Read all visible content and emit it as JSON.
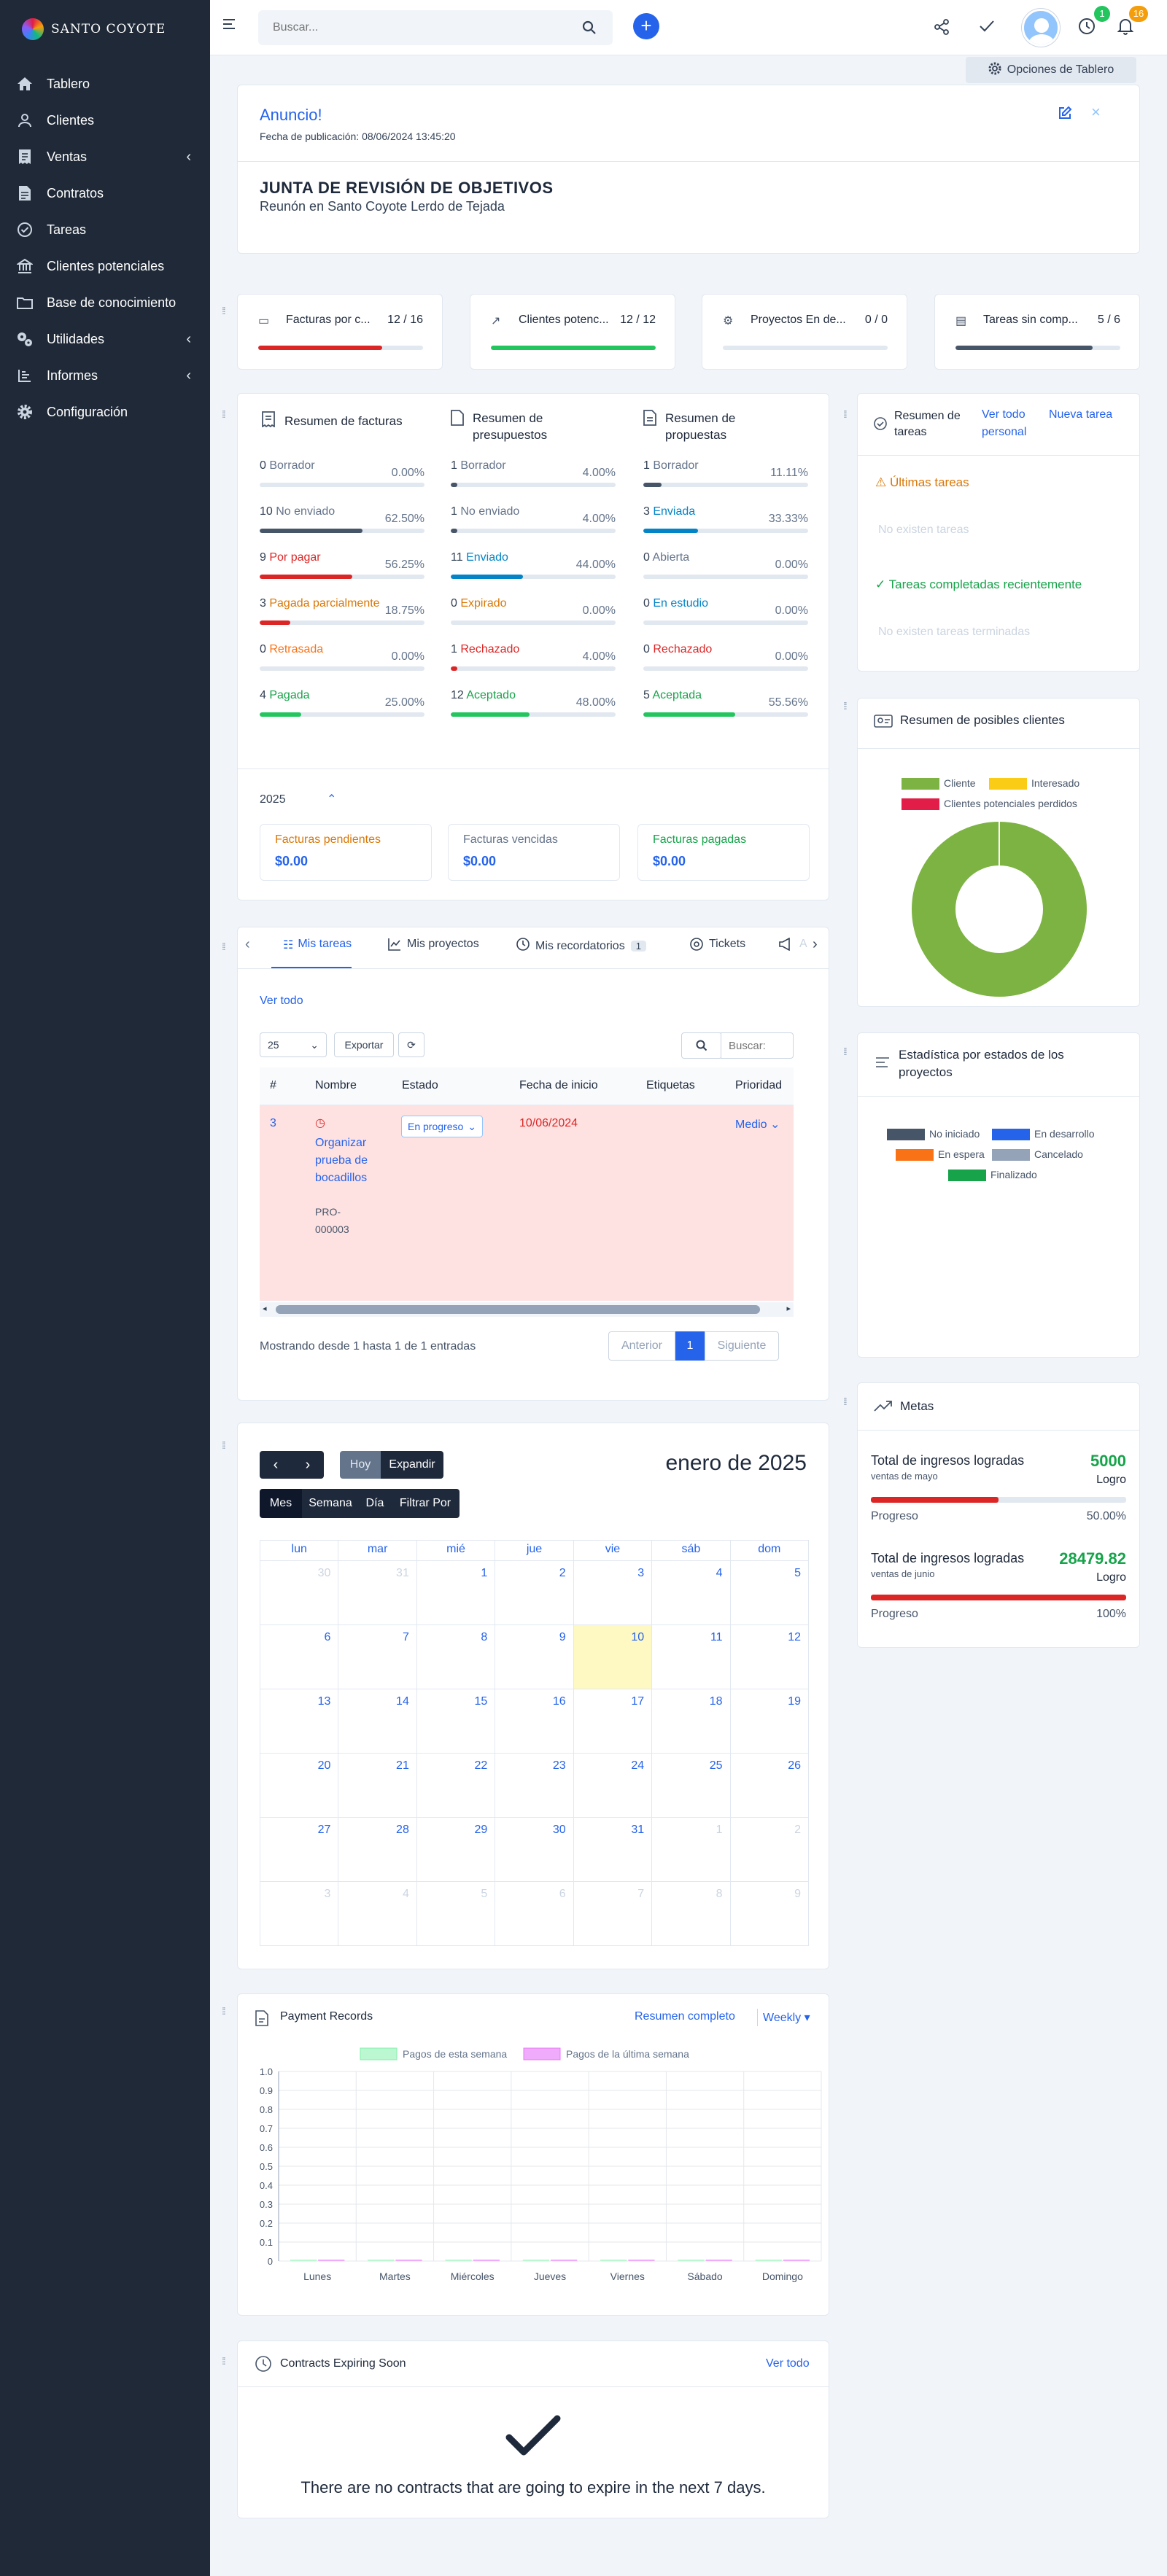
{
  "app": {
    "brand": "SANTO COYOTE"
  },
  "sidebar": {
    "items": [
      {
        "label": "Tablero",
        "icon": "home-icon"
      },
      {
        "label": "Clientes",
        "icon": "user-icon"
      },
      {
        "label": "Ventas",
        "icon": "receipt-icon"
      },
      {
        "label": "Contratos",
        "icon": "file-icon"
      },
      {
        "label": "Tareas",
        "icon": "check-circle-icon"
      },
      {
        "label": "Clientes potenciales",
        "icon": "bank-icon"
      },
      {
        "label": "Base de conocimiento",
        "icon": "folder-icon"
      },
      {
        "label": "Utilidades",
        "icon": "cogs-icon"
      },
      {
        "label": "Informes",
        "icon": "chart-icon"
      },
      {
        "label": "Configuración",
        "icon": "gear-icon"
      }
    ]
  },
  "topbar": {
    "search_placeholder": "Buscar...",
    "timer_badge": "1",
    "notif_badge": "16"
  },
  "dashboard_options": "Opciones de Tablero",
  "announcement": {
    "title": "Anuncio!",
    "date": "Fecha de publicación: 08/06/2024 13:45:20",
    "heading": "JUNTA DE REVISIÓN DE OBJETIVOS",
    "body": "Reunón en Santo Coyote Lerdo de Tejada"
  },
  "top_stats": [
    {
      "label": "Facturas por c...",
      "value": "12 / 16",
      "fill": 0.75,
      "color": "#dc2626"
    },
    {
      "label": "Clientes potenc...",
      "value": "12 / 12",
      "fill": 1.0,
      "color": "#22c55e"
    },
    {
      "label": "Proyectos En de...",
      "value": "0 / 0",
      "fill": 0,
      "color": "#94a3b8"
    },
    {
      "label": "Tareas sin comp...",
      "value": "5 / 6",
      "fill": 0.833,
      "color": "#475569"
    }
  ],
  "summary": {
    "invoices": {
      "title": "Resumen de facturas",
      "rows": [
        {
          "count": "0",
          "label": "Borrador",
          "pct": "0.00%",
          "fill": 0,
          "color": "#475569",
          "text_color": "#64748b"
        },
        {
          "count": "10",
          "label": "No enviado",
          "pct": "62.50%",
          "fill": 0.625,
          "color": "#475569",
          "text_color": "#64748b"
        },
        {
          "count": "9",
          "label": "Por pagar",
          "pct": "56.25%",
          "fill": 0.5625,
          "color": "#dc2626",
          "text_color": "#dc2626"
        },
        {
          "count": "3",
          "label": "Pagada parcialmente",
          "pct": "18.75%",
          "fill": 0.1875,
          "color": "#dc2626",
          "text_color": "#d97706"
        },
        {
          "count": "0",
          "label": "Retrasada",
          "pct": "0.00%",
          "fill": 0,
          "color": "#f97316",
          "text_color": "#f97316"
        },
        {
          "count": "4",
          "label": "Pagada",
          "pct": "25.00%",
          "fill": 0.25,
          "color": "#22c55e",
          "text_color": "#16a34a"
        }
      ]
    },
    "estimates": {
      "title": "Resumen de presupuestos",
      "rows": [
        {
          "count": "1",
          "label": "Borrador",
          "pct": "4.00%",
          "fill": 0.04,
          "color": "#475569",
          "text_color": "#64748b"
        },
        {
          "count": "1",
          "label": "No enviado",
          "pct": "4.00%",
          "fill": 0.04,
          "color": "#475569",
          "text_color": "#64748b"
        },
        {
          "count": "11",
          "label": "Enviado",
          "pct": "44.00%",
          "fill": 0.44,
          "color": "#0284c7",
          "text_color": "#0284c7"
        },
        {
          "count": "0",
          "label": "Expirado",
          "pct": "0.00%",
          "fill": 0,
          "color": "#d97706",
          "text_color": "#d97706"
        },
        {
          "count": "1",
          "label": "Rechazado",
          "pct": "4.00%",
          "fill": 0.04,
          "color": "#dc2626",
          "text_color": "#dc2626"
        },
        {
          "count": "12",
          "label": "Aceptado",
          "pct": "48.00%",
          "fill": 0.48,
          "color": "#22c55e",
          "text_color": "#16a34a"
        }
      ]
    },
    "proposals": {
      "title": "Resumen de propuestas",
      "rows": [
        {
          "count": "1",
          "label": "Borrador",
          "pct": "11.11%",
          "fill": 0.1111,
          "color": "#475569",
          "text_color": "#64748b"
        },
        {
          "count": "3",
          "label": "Enviada",
          "pct": "33.33%",
          "fill": 0.3333,
          "color": "#0284c7",
          "text_color": "#0284c7"
        },
        {
          "count": "0",
          "label": "Abierta",
          "pct": "0.00%",
          "fill": 0,
          "color": "#475569",
          "text_color": "#64748b"
        },
        {
          "count": "0",
          "label": "En estudio",
          "pct": "0.00%",
          "fill": 0,
          "color": "#0284c7",
          "text_color": "#0284c7"
        },
        {
          "count": "0",
          "label": "Rechazado",
          "pct": "0.00%",
          "fill": 0,
          "color": "#dc2626",
          "text_color": "#dc2626"
        },
        {
          "count": "5",
          "label": "Aceptada",
          "pct": "55.56%",
          "fill": 0.5556,
          "color": "#22c55e",
          "text_color": "#16a34a"
        }
      ]
    },
    "year": "2025",
    "totals": [
      {
        "label": "Facturas pendientes",
        "value": "$0.00",
        "color": "#d97706"
      },
      {
        "label": "Facturas vencidas",
        "value": "$0.00",
        "color": "#64748b"
      },
      {
        "label": "Facturas pagadas",
        "value": "$0.00",
        "color": "#16a34a"
      }
    ]
  },
  "tasks_summary": {
    "title": "Resumen de tareas",
    "view_all": "Ver todo",
    "new_task": "Nueva tarea personal",
    "latest": "Últimas tareas",
    "no_tasks": "No existen tareas",
    "completed": "Tareas completadas recientemente",
    "no_completed": "No existen tareas terminadas"
  },
  "leads": {
    "title": "Resumen de posibles clientes",
    "legend": [
      {
        "label": "Cliente",
        "color": "#7cb342"
      },
      {
        "label": "Interesado",
        "color": "#facc15"
      },
      {
        "label": "Clientes potenciales perdidos",
        "color": "#e11d48"
      }
    ],
    "chart_data": {
      "type": "pie",
      "labels": [
        "Cliente",
        "Interesado",
        "Clientes potenciales perdidos"
      ],
      "values": [
        12,
        0,
        0
      ]
    }
  },
  "tabs": {
    "items": [
      {
        "label": "Mis tareas",
        "icon": "list-icon",
        "active": true
      },
      {
        "label": "Mis proyectos",
        "icon": "chart-icon"
      },
      {
        "label": "Mis recordatorios",
        "icon": "clock-icon",
        "badge": "1"
      },
      {
        "label": "Tickets",
        "icon": "support-icon"
      },
      {
        "label": "A",
        "icon": "megaphone-icon"
      }
    ],
    "view_all": "Ver todo",
    "page_size": "25",
    "export": "Exportar",
    "search_placeholder": "Buscar:",
    "columns": [
      "#",
      "Nombre",
      "Estado",
      "Fecha de inicio",
      "Etiquetas",
      "Prioridad"
    ],
    "row": {
      "id": "3",
      "name": "Organizar prueba de bocadillos",
      "code": "PRO-000003",
      "status": "En progreso",
      "start": "10/06/2024",
      "tags": "",
      "priority": "Medio"
    },
    "info": "Mostrando desde 1 hasta 1 de 1 entradas",
    "prev": "Anterior",
    "page": "1",
    "next": "Siguiente"
  },
  "project_stats": {
    "title": "Estadística por estados de los proyectos",
    "legend": [
      {
        "label": "No iniciado",
        "color": "#475569"
      },
      {
        "label": "En desarrollo",
        "color": "#2563eb"
      },
      {
        "label": "En espera",
        "color": "#f97316"
      },
      {
        "label": "Cancelado",
        "color": "#94a3b8"
      },
      {
        "label": "Finalizado",
        "color": "#16a34a"
      }
    ]
  },
  "goals": {
    "title": "Metas",
    "items": [
      {
        "title": "Total de ingresos logradas",
        "sub": "ventas de mayo",
        "value": "5000",
        "value_label": "Logro",
        "progress_label": "Progreso",
        "progress": "50.00%",
        "fill": 0.5
      },
      {
        "title": "Total de ingresos logradas",
        "sub": "ventas de junio",
        "value": "28479.82",
        "value_label": "Logro",
        "progress_label": "Progreso",
        "progress": "100%",
        "fill": 1.0
      }
    ]
  },
  "calendar": {
    "today": "Hoy",
    "expand": "Expandir",
    "views": [
      "Mes",
      "Semana",
      "Día",
      "Filtrar Por"
    ],
    "title": "enero de 2025",
    "weekdays": [
      "lun",
      "mar",
      "mié",
      "jue",
      "vie",
      "sáb",
      "dom"
    ],
    "weeks": [
      [
        "30",
        "31",
        "1",
        "2",
        "3",
        "4",
        "5"
      ],
      [
        "6",
        "7",
        "8",
        "9",
        "10",
        "11",
        "12"
      ],
      [
        "13",
        "14",
        "15",
        "16",
        "17",
        "18",
        "19"
      ],
      [
        "20",
        "21",
        "22",
        "23",
        "24",
        "25",
        "26"
      ],
      [
        "27",
        "28",
        "29",
        "30",
        "31",
        "1",
        "2"
      ],
      [
        "3",
        "4",
        "5",
        "6",
        "7",
        "8",
        "9"
      ]
    ]
  },
  "payments": {
    "title": "Payment Records",
    "full_summary": "Resumen completo",
    "period": "Weekly",
    "chart_data": {
      "type": "bar",
      "categories": [
        "Lunes",
        "Martes",
        "Miércoles",
        "Jueves",
        "Viernes",
        "Sábado",
        "Domingo"
      ],
      "series": [
        {
          "name": "Pagos de esta semana",
          "values": [
            0,
            0,
            0,
            0,
            0,
            0,
            0
          ],
          "color": "#bbf7d0"
        },
        {
          "name": "Pagos de la última semana",
          "values": [
            0,
            0,
            0,
            0,
            0,
            0,
            0
          ],
          "color": "#f0abfc"
        }
      ],
      "yticks": [
        "1.0",
        "0.9",
        "0.8",
        "0.7",
        "0.6",
        "0.5",
        "0.4",
        "0.3",
        "0.2",
        "0.1",
        "0"
      ],
      "ylim": [
        0,
        1
      ]
    }
  },
  "contracts": {
    "title": "Contracts Expiring Soon",
    "view_all": "Ver todo",
    "empty": "There are no contracts that are going to expire in the next 7 days."
  }
}
